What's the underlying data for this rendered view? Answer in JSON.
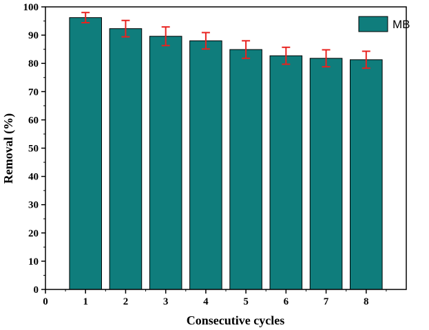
{
  "chart_data": {
    "type": "bar",
    "title": "",
    "xlabel": "Consecutive cycles",
    "ylabel": "Removal (%)",
    "xlim": [
      0,
      9
    ],
    "ylim": [
      0,
      100
    ],
    "x_ticks": [
      0,
      1,
      2,
      3,
      4,
      5,
      6,
      7,
      8
    ],
    "y_ticks": [
      0,
      10,
      20,
      30,
      40,
      50,
      60,
      70,
      80,
      90,
      100
    ],
    "categories": [
      1,
      2,
      3,
      4,
      5,
      6,
      7,
      8
    ],
    "series": [
      {
        "name": "MB",
        "values": [
          96.2,
          92.3,
          89.6,
          88.0,
          84.9,
          82.7,
          81.8,
          81.3
        ],
        "errors": [
          1.8,
          2.9,
          3.3,
          2.9,
          3.1,
          3.0,
          3.0,
          3.0
        ]
      }
    ],
    "grid": false,
    "legend": "top-right",
    "colors": {
      "bar_fill": "#0f7d7c",
      "bar_stroke": "#000000",
      "error_bar": "#e8221f"
    }
  }
}
